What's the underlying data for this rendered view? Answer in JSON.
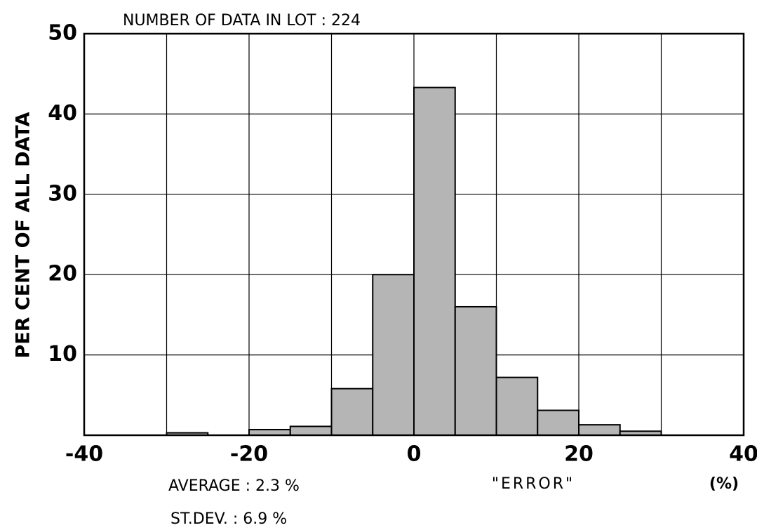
{
  "chart_data": {
    "type": "histogram",
    "title": "NUMBER OF DATA IN LOT : 224",
    "ylabel": "PER CENT OF ALL DATA",
    "xlabel": "\"ERROR\"",
    "xunit": "(%)",
    "annotations": [
      "AVERAGE : 2.3 %",
      "ST.DEV. : 6.9 %"
    ],
    "bins": [
      -30,
      -25,
      -20,
      -15,
      -10,
      -5,
      0,
      5,
      10,
      15,
      20,
      25,
      30
    ],
    "values": [
      0.3,
      0,
      0.7,
      1.1,
      5.8,
      20,
      43.3,
      16,
      7.2,
      3.1,
      1.3,
      0.5
    ],
    "color": "#b5b5b5",
    "xlim": [
      -40,
      40
    ],
    "xticks": [
      -40,
      -20,
      0,
      20,
      40
    ],
    "xgrid": [
      -40,
      -30,
      -20,
      -10,
      0,
      10,
      20,
      30,
      40
    ],
    "ylim": [
      0,
      50
    ],
    "yticks": [
      10,
      20,
      30,
      40,
      50
    ],
    "grid": true
  }
}
